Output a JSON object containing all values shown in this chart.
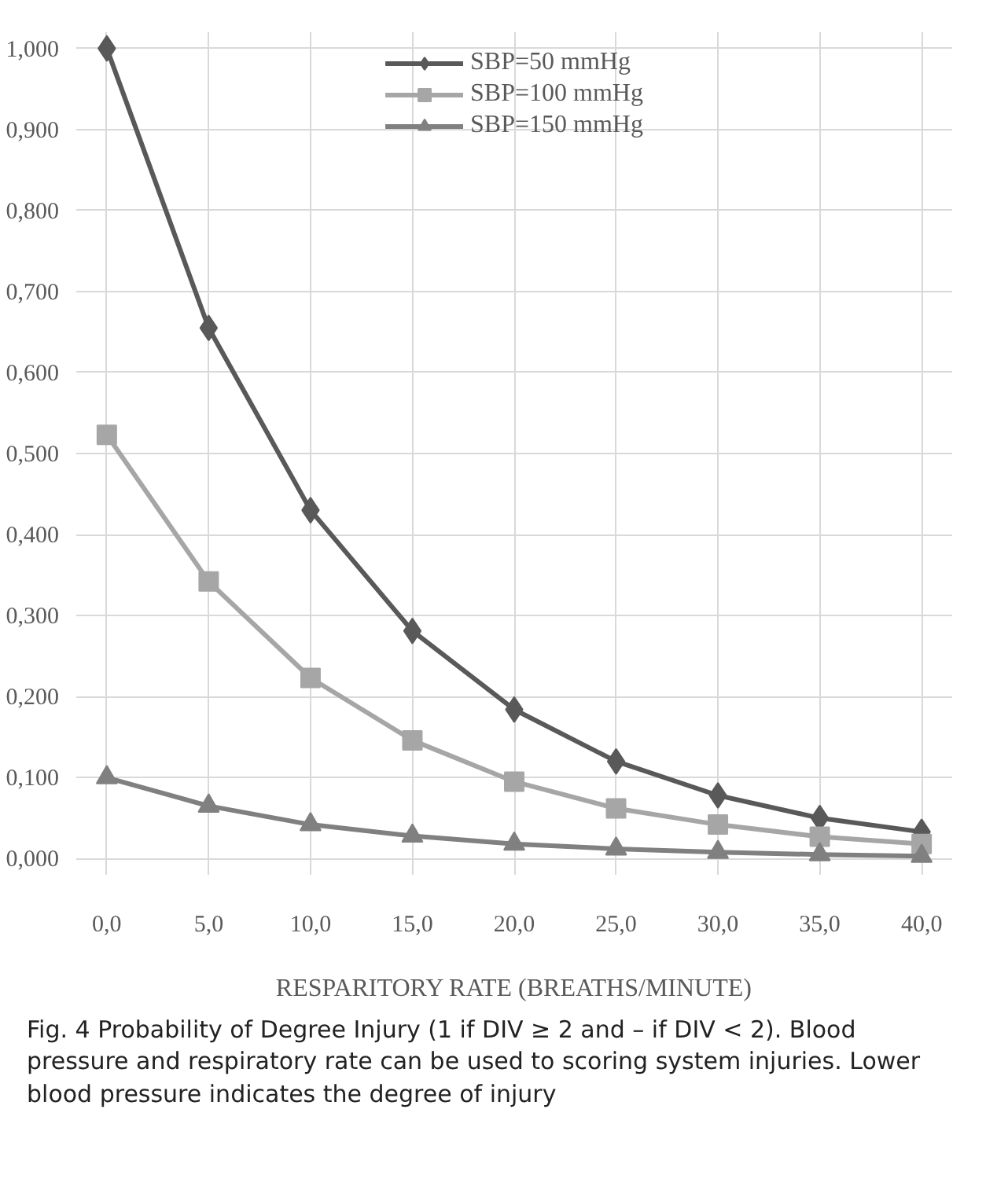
{
  "chart_data": {
    "type": "line",
    "xlabel": "RESPARITORY RATE (BREATHS/MINUTE)",
    "categories": [
      "0,0",
      "5,0",
      "10,0",
      "15,0",
      "20,0",
      "25,0",
      "30,0",
      "35,0",
      "40,0"
    ],
    "series": [
      {
        "name": "SBP=50 mmHg",
        "color": "#595959",
        "marker": "diamond",
        "values": [
          1.0,
          0.655,
          0.43,
          0.281,
          0.184,
          0.12,
          0.078,
          0.05,
          0.033
        ]
      },
      {
        "name": "SBP=100 mmHg",
        "color": "#a6a6a6",
        "marker": "square",
        "values": [
          0.523,
          0.342,
          0.223,
          0.146,
          0.095,
          0.062,
          0.042,
          0.027,
          0.018
        ]
      },
      {
        "name": "SBP=150 mmHg",
        "color": "#808080",
        "marker": "triangle",
        "values": [
          0.1,
          0.065,
          0.042,
          0.028,
          0.018,
          0.012,
          0.008,
          0.005,
          0.003
        ]
      }
    ],
    "ylim": [
      0,
      1
    ],
    "yticks": [
      {
        "value": 0,
        "label": "0,000"
      },
      {
        "value": 0.1,
        "label": "0,100"
      },
      {
        "value": 0.2,
        "label": "0,200"
      },
      {
        "value": 0.3,
        "label": "0,300"
      },
      {
        "value": 0.4,
        "label": "0,400"
      },
      {
        "value": 0.5,
        "label": "0,500"
      },
      {
        "value": 0.6,
        "label": "0,600"
      },
      {
        "value": 0.7,
        "label": "0,700"
      },
      {
        "value": 0.8,
        "label": "0,800"
      },
      {
        "value": 0.9,
        "label": "0,900"
      },
      {
        "value": 1,
        "label": "1,000"
      }
    ],
    "grid": true,
    "legend": "top",
    "line_style": "solid",
    "annotations": [
      "Fig. 4 Probability of Degree Injury (1 if DIV ≥ 2 and – if DIV < 2). Blood pressure and respiratory rate can be used to scoring system injuries. Lower blood pressure indicates the degree of injury"
    ]
  }
}
